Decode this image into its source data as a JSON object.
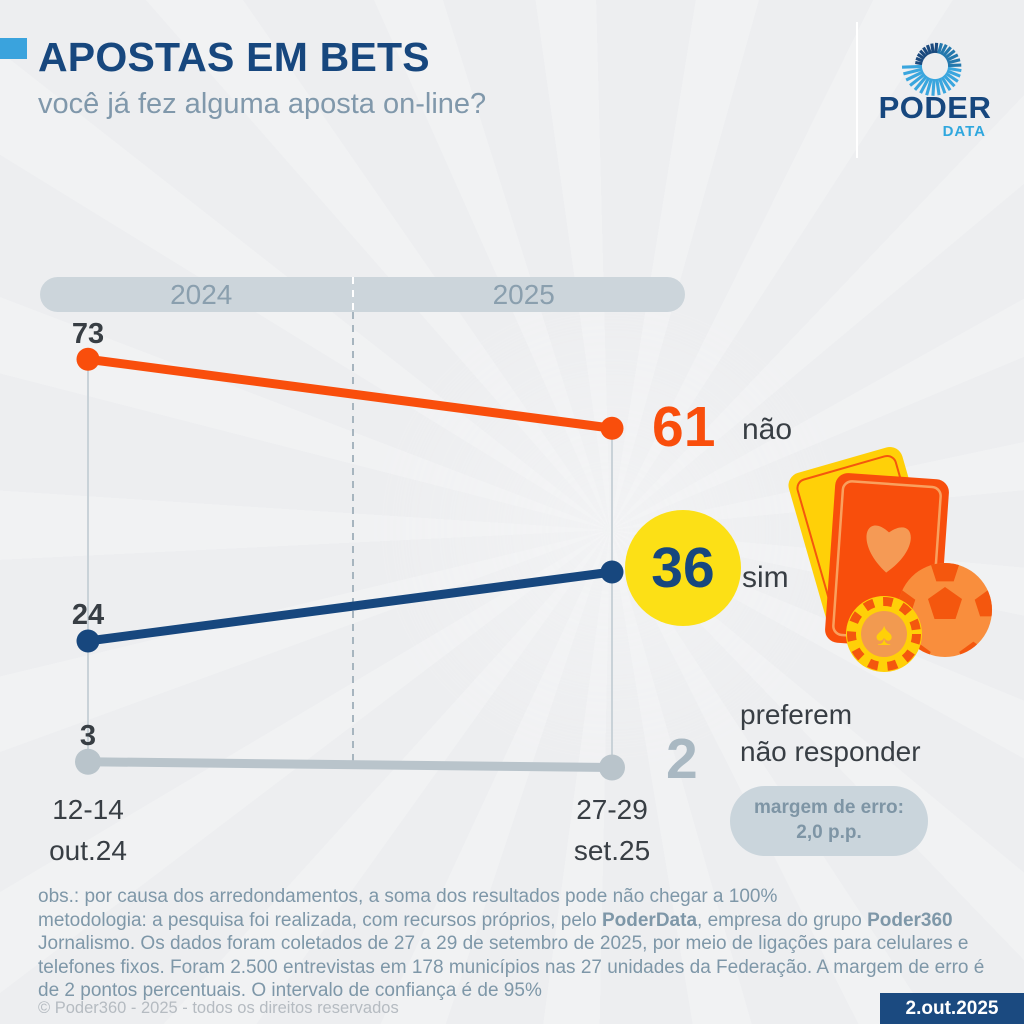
{
  "header": {
    "title": "APOSTAS EM BETS",
    "subtitle": "você já fez alguma aposta on-line?",
    "logo": {
      "brand": "PODER",
      "sub_brand": "DATA"
    }
  },
  "chart_data": {
    "type": "line",
    "title": "APOSTAS EM BETS",
    "subtitle": "você já fez alguma aposta on-line?",
    "periods": [
      "2024",
      "2025"
    ],
    "categories": [
      "12-14 out.24",
      "27-29 set.25"
    ],
    "series": [
      {
        "name": "não",
        "values": [
          73,
          61
        ],
        "color": "#f94e0c"
      },
      {
        "name": "sim",
        "values": [
          24,
          36
        ],
        "color": "#17477e"
      },
      {
        "name": "preferem não responder",
        "values": [
          3,
          2
        ],
        "color": "#b9c4cb"
      }
    ],
    "highlight": {
      "series": "sim",
      "value": 36,
      "style": "yellow-circle",
      "color": "#fce016"
    },
    "margin_of_error": "2,0 p.p.",
    "ylim": [
      0,
      80
    ],
    "grid": "off",
    "legend_position": "right-of-end-points"
  },
  "labels": {
    "no_label": "não",
    "yes_label": "sim",
    "prefer_line1": "preferem",
    "prefer_line2": "não responder",
    "x_left_line1": "12-14",
    "x_left_line2": "out.24",
    "x_right_line1": "27-29",
    "x_right_line2": "set.25"
  },
  "margin_box": {
    "line1": "margem de erro:",
    "line2": "2,0 p.p."
  },
  "footer": {
    "obs": "obs.: por causa dos arredondamentos, a soma dos resultados pode não chegar a 100%",
    "methodology": {
      "seg1": "metodologia: a pesquisa foi realizada, com recursos próprios, pelo ",
      "bold1": "PoderData",
      "seg2": ", empresa do grupo ",
      "bold2": "Poder360",
      "seg3": " Jornalismo. Os dados foram coletados de 27 a 29 de setembro de 2025, por meio de ligações para celulares e telefones fixos. Foram 2.500 entrevistas em 178 municípios nas 27 unidades da Federação. A margem de erro é de 2 pontos percentuais. O intervalo de confiança é de 95%"
    },
    "copyright": "© Poder360 - 2025 - todos os direitos reservados",
    "date": "2.out.2025"
  },
  "colors": {
    "accent_blue": "#3aa3dd",
    "navy": "#17477e",
    "orange": "#f94e0c",
    "yellow": "#fce016",
    "gray_line": "#b9c4cb",
    "pill_bg": "#ccd5db",
    "footer_text": "#7e97a8",
    "badge_bg": "#1b4a80"
  }
}
